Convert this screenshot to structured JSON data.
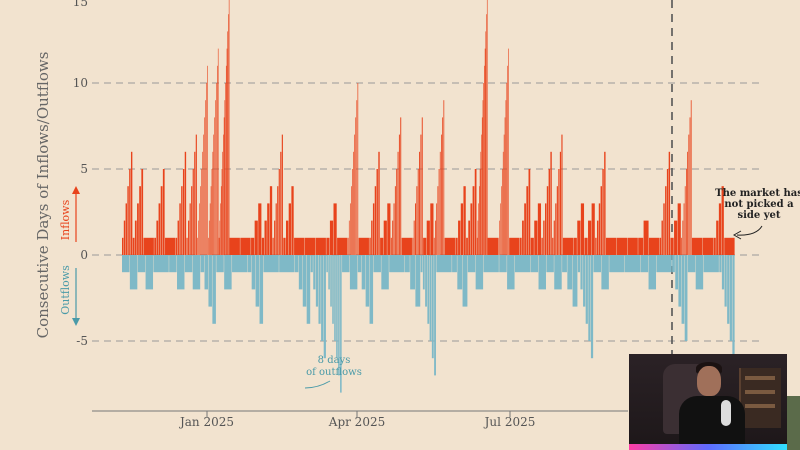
{
  "chart_data": {
    "type": "bar",
    "ylabel": "Consecutive Days of Inflows/Outflows",
    "yticks": [
      -5,
      0,
      5,
      10,
      15
    ],
    "ytick_labels": [
      "-5",
      "0",
      "5",
      "10",
      "15"
    ],
    "ylim": [
      -8,
      15
    ],
    "xticks": [
      "Jan 2025",
      "Apr 2025",
      "Jul 2025"
    ],
    "legend": {
      "inflows": "Inflows",
      "outflows": "Outflows"
    },
    "colors": {
      "inflow": "#e8431c",
      "outflow": "#7fb9c7",
      "background": "#f2e3cf",
      "grid": "#999999"
    },
    "annotations": {
      "outflows_note": [
        "8 days",
        "of outflows"
      ],
      "market_note": [
        "The market has",
        "not picked a",
        "side yet"
      ]
    },
    "series": [
      {
        "name": "Inflows",
        "values": [
          6,
          5,
          1,
          5,
          1,
          6,
          7,
          11,
          12,
          15,
          1,
          1,
          3,
          4,
          7,
          4,
          1,
          1,
          1,
          3,
          1,
          10,
          1,
          6,
          3,
          8,
          1,
          8,
          3,
          9,
          1,
          4,
          5,
          15,
          1,
          12,
          1,
          5,
          3,
          6,
          7,
          1,
          3,
          3,
          6,
          1,
          1,
          1,
          2,
          1,
          6,
          3,
          9,
          1,
          1,
          4,
          1
        ]
      },
      {
        "name": "Outflows",
        "values": [
          -2,
          -2,
          -1,
          -2,
          -2,
          -4,
          -2,
          -1,
          -4,
          -1,
          -1,
          -4,
          -6,
          -8,
          -2,
          -4,
          -2,
          -1,
          -3,
          -7,
          -1,
          -3,
          -2,
          -1,
          -2,
          -1,
          -2,
          -2,
          -3,
          -6,
          -2,
          -1,
          -1,
          -2,
          -1,
          -5,
          -2,
          -1,
          -6
        ]
      }
    ]
  },
  "webcam": {
    "label": "Presenter camera"
  }
}
